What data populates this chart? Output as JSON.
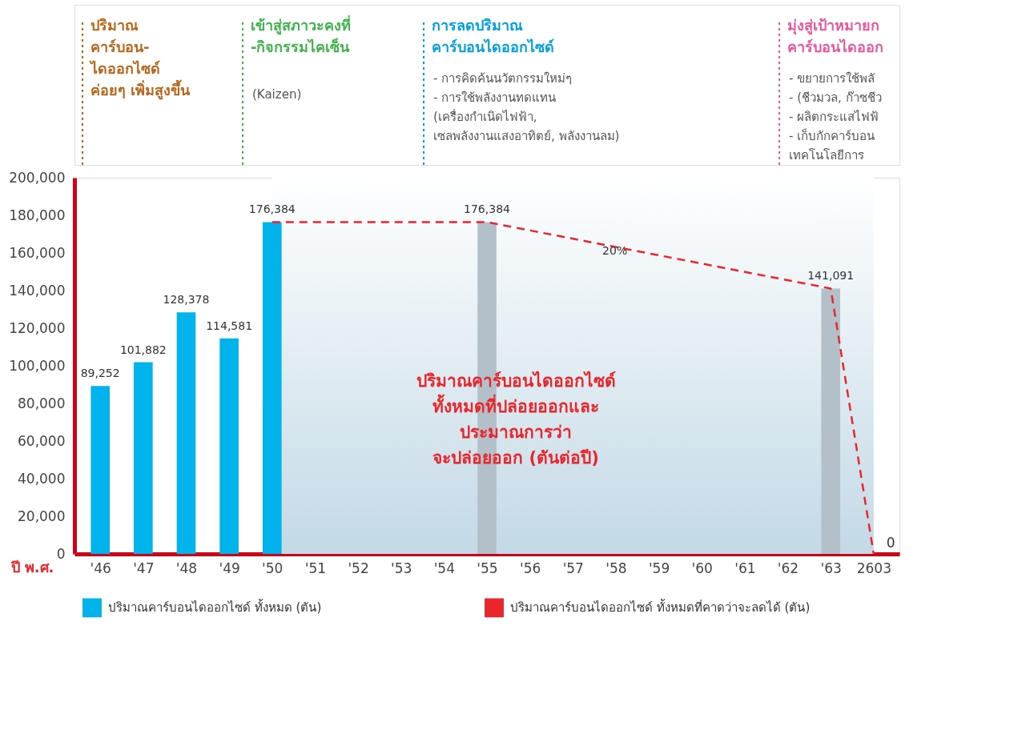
{
  "chart_data": {
    "type": "bar",
    "xlabel": "ปี พ.ศ.",
    "categories": [
      "'46",
      "'47",
      "'48",
      "'49",
      "'50",
      "'51",
      "'52",
      "'53",
      "'54",
      "'55",
      "'56",
      "'57",
      "'58",
      "'59",
      "'60",
      "'61",
      "'62",
      "'63",
      "2603"
    ],
    "series": [
      {
        "name": "ปริมาณคาร์บอนไดออกไซด์ ทั้งหมด (ตัน)",
        "color": "#00b4eb",
        "values": [
          89252,
          101882,
          128378,
          114581,
          176384,
          null,
          null,
          null,
          null,
          null,
          null,
          null,
          null,
          null,
          null,
          null,
          null,
          null,
          null
        ],
        "value_labels": [
          "89,252",
          "101,882",
          "128,378",
          "114,581",
          "176,384",
          null,
          null,
          null,
          null,
          null,
          null,
          null,
          null,
          null,
          null,
          null,
          null,
          null,
          null
        ]
      },
      {
        "color": "#b4c0c9",
        "values": [
          null,
          null,
          null,
          null,
          null,
          null,
          null,
          null,
          null,
          176384,
          null,
          null,
          null,
          null,
          null,
          null,
          null,
          141091,
          null
        ],
        "value_labels": [
          null,
          null,
          null,
          null,
          null,
          null,
          null,
          null,
          null,
          "176,384",
          null,
          null,
          null,
          null,
          null,
          null,
          null,
          "141,091",
          null
        ]
      },
      {
        "name": "ปริมาณคาร์บอนไดออกไซด์ ทั้งหมดที่คาดว่าจะลดได้ (ตัน)",
        "type": "line",
        "color": "#e8262c",
        "line_style": "dashed",
        "values": [
          null,
          null,
          null,
          null,
          176384,
          null,
          null,
          null,
          null,
          176384,
          null,
          null,
          null,
          null,
          null,
          null,
          null,
          141091,
          0
        ],
        "value_labels": [
          null,
          null,
          null,
          null,
          null,
          null,
          null,
          null,
          null,
          null,
          null,
          null,
          null,
          null,
          null,
          null,
          null,
          null,
          "0"
        ]
      }
    ],
    "ylim": [
      0,
      200000
    ],
    "yticks": [
      0,
      {
        "value": 20000,
        "label": "20,000"
      },
      {
        "value": 40000,
        "label": "40,000"
      },
      {
        "value": 60000,
        "label": "60,000"
      },
      {
        "value": 80000,
        "label": "80,000"
      },
      {
        "value": 100000,
        "label": "100,000"
      },
      {
        "value": 120000,
        "label": "120,000"
      },
      {
        "value": 140000,
        "label": "140,000"
      },
      {
        "value": 160000,
        "label": "160,000"
      },
      {
        "value": 180000,
        "label": "180,000"
      },
      {
        "value": 200000,
        "label": "200,000"
      }
    ],
    "bands": [
      {
        "axis": "x",
        "from": "'50",
        "to": "2603",
        "color": "#c3d9e6"
      }
    ],
    "annotations": [
      "ปริมาณ\nคาร์บอน-\nไดออกไซด์\nค่อยๆ เพิ่มสูงขึ้น",
      "เข้าสู่สภาวะคงที่\n-กิจกรรมไคเซ็น",
      "(Kaizen)",
      "การลดปริมาณ\nคาร์บอนไดออกไซด์",
      "- การคิดค้นนวัตกรรมใหม่ๆ\n- การใช้พลังงานทดแทน\n  (เครื่องกำเนิดไฟฟ้า,\n  เซลพลังงานแสงอาทิตย์, พลังงานลม)",
      "มุ่งสู่เป้าหมายก\nคาร์บอนไดออก",
      "- ขยายการใช้พลั\n- (ชีวมวล, ก๊าซชีว\n- ผลิตกระแสไฟฟ้\n- เก็บกักคาร์บอน\n  เทคโนโลยีการ",
      "20%",
      "ปริมาณคาร์บอนไดออกไซด์\nทั้งหมดที่ปล่อยออกและ\nประมาณการว่า\nจะปล่อยออก (ตันต่อปี)"
    ],
    "grid": false,
    "marker": "none",
    "legend": "bottom"
  }
}
